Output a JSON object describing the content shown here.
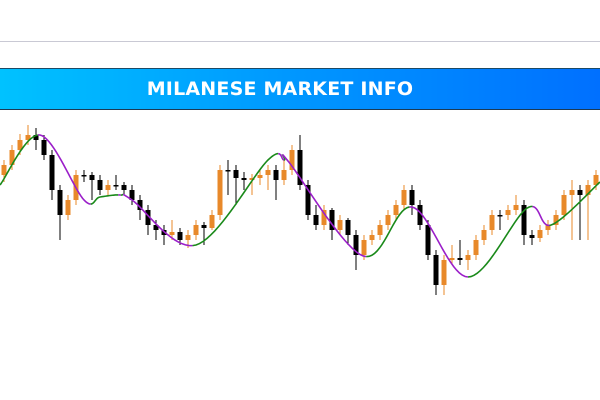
{
  "banner": {
    "title": "MILANESE MARKET INFO"
  },
  "colors": {
    "bull": "#e8892a",
    "bear": "#000000",
    "ma_up": "#1a8a1a",
    "ma_down": "#9b1fc9",
    "banner_start": "#00c2ff",
    "banner_end": "#0070ff"
  },
  "chart_data": {
    "type": "candlestick",
    "title": "",
    "xlabel": "",
    "ylabel": "",
    "grid": false,
    "candles": [
      [
        125,
        140,
        118,
        135
      ],
      [
        135,
        155,
        130,
        150
      ],
      [
        150,
        166,
        145,
        160
      ],
      [
        160,
        175,
        155,
        165
      ],
      [
        165,
        172,
        150,
        160
      ],
      [
        160,
        165,
        140,
        145
      ],
      [
        145,
        150,
        100,
        110
      ],
      [
        110,
        115,
        60,
        85
      ],
      [
        85,
        105,
        80,
        100
      ],
      [
        100,
        130,
        95,
        125
      ],
      [
        125,
        130,
        118,
        125
      ],
      [
        125,
        128,
        100,
        120
      ],
      [
        120,
        125,
        105,
        110
      ],
      [
        110,
        120,
        105,
        115
      ],
      [
        115,
        125,
        110,
        115
      ],
      [
        115,
        118,
        105,
        110
      ],
      [
        110,
        115,
        95,
        100
      ],
      [
        100,
        105,
        80,
        90
      ],
      [
        90,
        95,
        65,
        75
      ],
      [
        75,
        80,
        60,
        70
      ],
      [
        70,
        75,
        55,
        65
      ],
      [
        65,
        80,
        60,
        68
      ],
      [
        68,
        72,
        55,
        60
      ],
      [
        60,
        70,
        52,
        65
      ],
      [
        65,
        80,
        60,
        75
      ],
      [
        75,
        78,
        55,
        72
      ],
      [
        72,
        90,
        70,
        85
      ],
      [
        85,
        135,
        80,
        130
      ],
      [
        130,
        140,
        105,
        130
      ],
      [
        130,
        135,
        95,
        122
      ],
      [
        122,
        128,
        110,
        120
      ],
      [
        120,
        126,
        105,
        122
      ],
      [
        122,
        130,
        115,
        125
      ],
      [
        125,
        135,
        110,
        130
      ],
      [
        130,
        135,
        100,
        120
      ],
      [
        120,
        140,
        115,
        130
      ],
      [
        130,
        155,
        125,
        150
      ],
      [
        150,
        165,
        110,
        115
      ],
      [
        115,
        120,
        80,
        85
      ],
      [
        85,
        95,
        70,
        75
      ],
      [
        75,
        95,
        70,
        90
      ],
      [
        90,
        92,
        60,
        70
      ],
      [
        70,
        85,
        65,
        80
      ],
      [
        80,
        82,
        55,
        65
      ],
      [
        65,
        70,
        30,
        45
      ],
      [
        45,
        65,
        40,
        60
      ],
      [
        60,
        70,
        55,
        65
      ],
      [
        65,
        80,
        60,
        75
      ],
      [
        75,
        90,
        70,
        85
      ],
      [
        85,
        100,
        80,
        95
      ],
      [
        95,
        115,
        90,
        110
      ],
      [
        110,
        115,
        85,
        95
      ],
      [
        95,
        100,
        70,
        75
      ],
      [
        75,
        80,
        40,
        45
      ],
      [
        45,
        50,
        5,
        15
      ],
      [
        15,
        45,
        5,
        40
      ],
      [
        40,
        55,
        35,
        42
      ],
      [
        42,
        60,
        35,
        40
      ],
      [
        40,
        50,
        30,
        45
      ],
      [
        45,
        65,
        40,
        60
      ],
      [
        60,
        75,
        55,
        70
      ],
      [
        70,
        90,
        65,
        85
      ],
      [
        85,
        90,
        70,
        85
      ],
      [
        85,
        95,
        80,
        90
      ],
      [
        90,
        105,
        85,
        95
      ],
      [
        95,
        100,
        55,
        65
      ],
      [
        65,
        70,
        55,
        62
      ],
      [
        62,
        75,
        58,
        70
      ],
      [
        70,
        80,
        65,
        75
      ],
      [
        75,
        90,
        70,
        85
      ],
      [
        85,
        110,
        80,
        105
      ],
      [
        105,
        120,
        60,
        110
      ],
      [
        110,
        115,
        60,
        105
      ],
      [
        105,
        120,
        60,
        115
      ],
      [
        115,
        130,
        110,
        125
      ],
      [
        125,
        135,
        115,
        128
      ]
    ],
    "moving_average": [
      [
        -0.5,
        115
      ],
      [
        4.5,
        165
      ],
      [
        10,
        100
      ],
      [
        12,
        103
      ],
      [
        14.5,
        105
      ],
      [
        16,
        100
      ],
      [
        24,
        55
      ],
      [
        33,
        140
      ],
      [
        35,
        140
      ],
      [
        35.6,
        138
      ],
      [
        44.9,
        44
      ],
      [
        51,
        93
      ],
      [
        58,
        23
      ],
      [
        65.4,
        92
      ],
      [
        68.4,
        75
      ],
      [
        74.5,
        118
      ]
    ]
  }
}
